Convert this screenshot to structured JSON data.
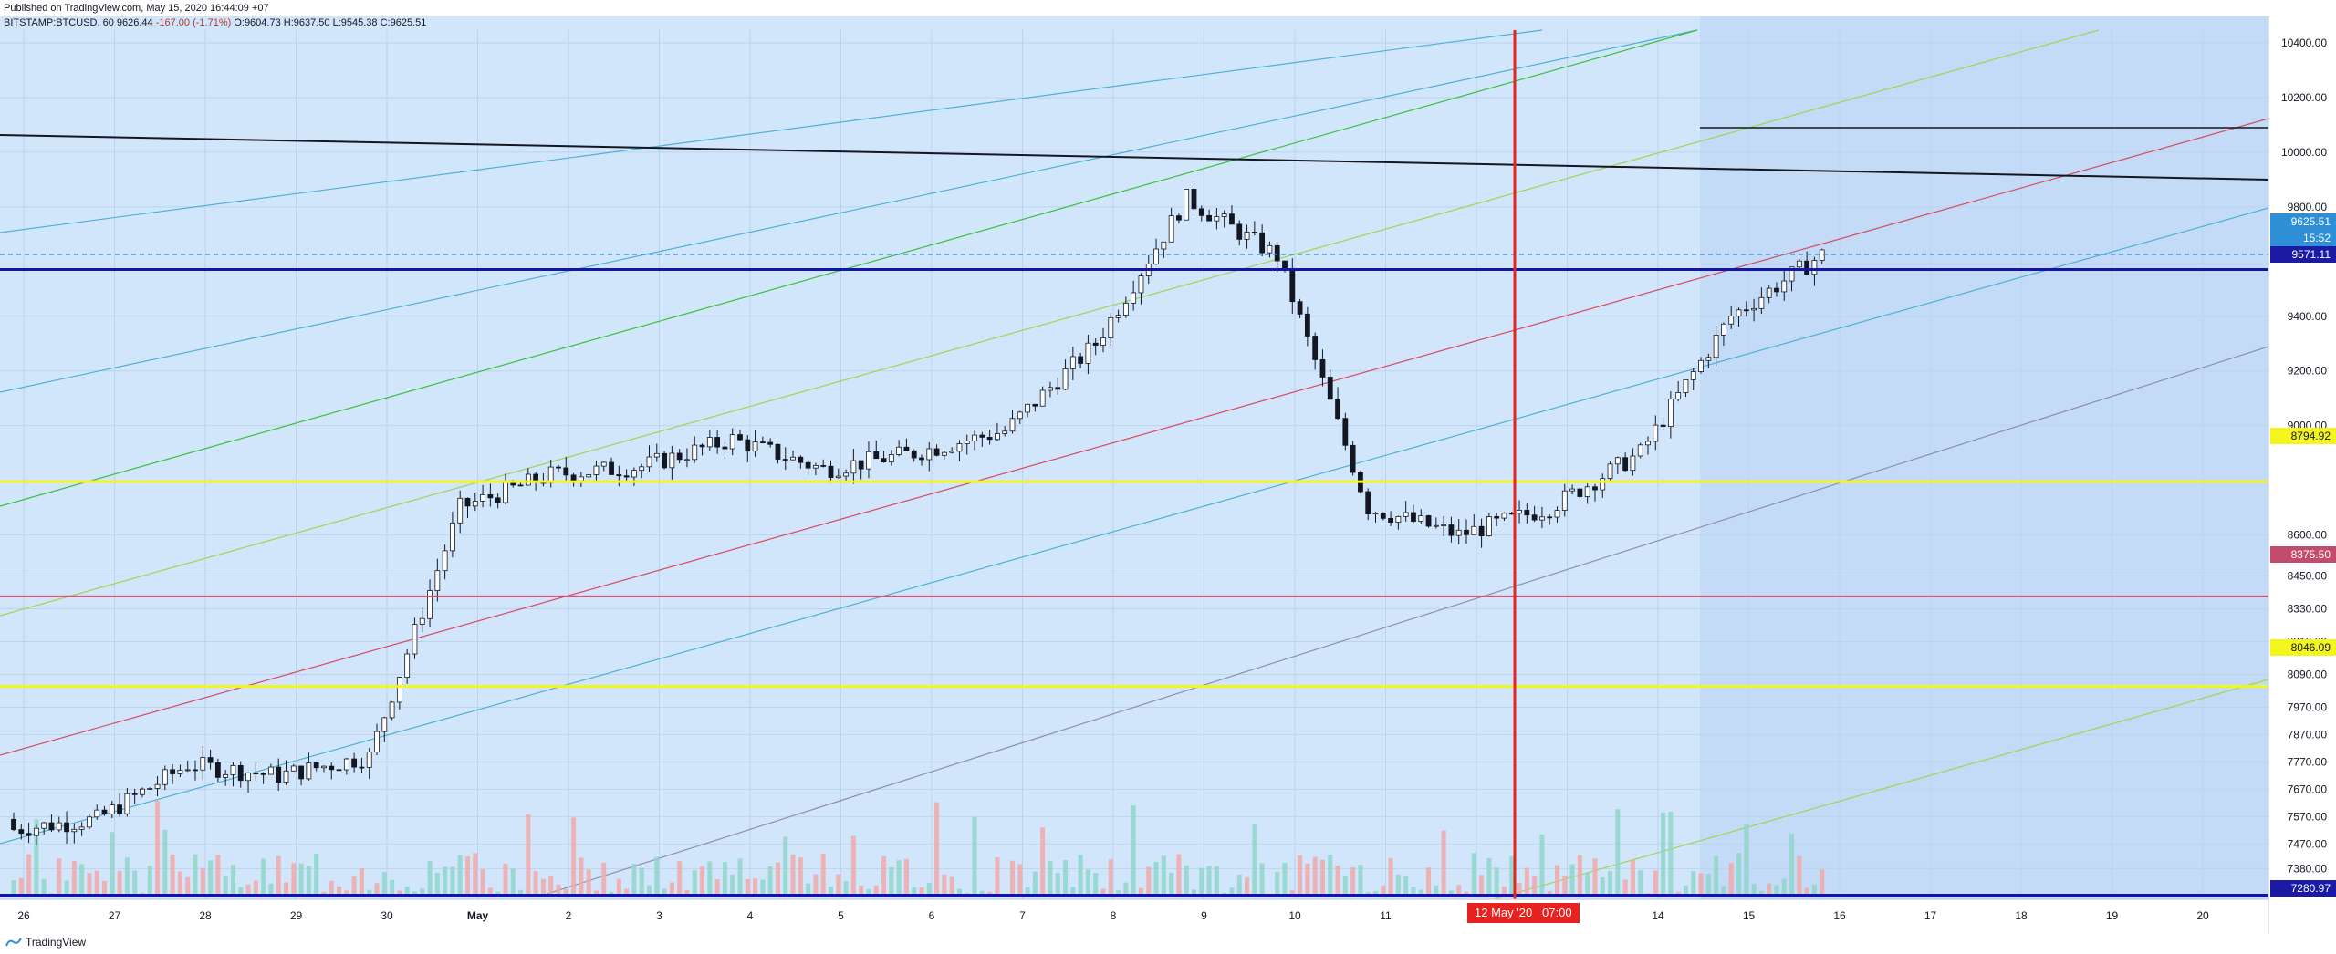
{
  "header": {
    "published": "Published on TradingView.com, May 15, 2020 16:44:09 +07",
    "symbol": "BITSTAMP:BTCUSD, 60",
    "last": "9626.44",
    "change": "-167.00 (-1.71%)",
    "o": "O:9604.73",
    "h": "H:9637.50",
    "l": "L:9545.38",
    "c": "C:9625.51"
  },
  "footer": {
    "brand": "TradingView"
  },
  "crosshair": {
    "date_label": "12 May '20",
    "time_label": "07:00"
  },
  "colors": {
    "background": "#d2e6fb",
    "shaded_region": "#c3dbf7",
    "up_candle": "#131722",
    "volume_up": "#8fd6c9",
    "volume_down": "#f2a8a8",
    "crosshair": "#e8231f",
    "yellow_level": "#f5f51e",
    "blue_level": "#1515a3",
    "red_level": "#c24b6e"
  },
  "chart_data": {
    "type": "candlestick",
    "series": [
      {
        "name": "BTCUSD",
        "x": [
          "Apr 26",
          "Apr 27",
          "Apr 28",
          "Apr 29",
          "Apr 30",
          "May 1",
          "May 2",
          "May 3",
          "May 4",
          "May 5",
          "May 6",
          "May 7",
          "May 8",
          "May 9",
          "May 10",
          "May 11",
          "May 12",
          "May 13",
          "May 14",
          "May 15"
        ],
        "close": [
          7560,
          7760,
          7720,
          7790,
          8700,
          8820,
          8850,
          8950,
          8840,
          8900,
          8980,
          9300,
          9830,
          9620,
          8700,
          8600,
          8700,
          8900,
          9400,
          9625
        ]
      }
    ],
    "x_tick_labels": [
      "26",
      "27",
      "28",
      "29",
      "30",
      "May",
      "2",
      "3",
      "4",
      "5",
      "6",
      "7",
      "8",
      "9",
      "10",
      "11",
      "12",
      "13",
      "14",
      "15",
      "16",
      "17",
      "18",
      "19",
      "20"
    ],
    "y_tick_labels": [
      "10400.00",
      "10200.00",
      "10000.00",
      "9800.00",
      "9400.00",
      "9200.00",
      "9000.00",
      "8600.00",
      "8450.00",
      "8330.00",
      "8210.00",
      "8090.00",
      "7970.00",
      "7870.00",
      "7770.00",
      "7670.00",
      "7570.00",
      "7470.00",
      "7380.00"
    ],
    "price_labels": [
      {
        "text": "9625.51",
        "bg": "#2e8fd6",
        "fg": "#ffffff"
      },
      {
        "text": "15:52",
        "bg": "#2e8fd6",
        "fg": "#ffffff"
      },
      {
        "text": "9571.11",
        "bg": "#1a1aa5",
        "fg": "#ffffff"
      },
      {
        "text": "8794.92",
        "bg": "#f5f51e",
        "fg": "#131722"
      },
      {
        "text": "8375.50",
        "bg": "#c24b6e",
        "fg": "#ffffff"
      },
      {
        "text": "8046.09",
        "bg": "#f5f51e",
        "fg": "#131722"
      },
      {
        "text": "7280.97",
        "bg": "#1a1aa5",
        "fg": "#ffffff"
      }
    ],
    "horizontal_levels": [
      9625.51,
      9571.11,
      8794.92,
      8375.5,
      8046.09,
      7280.97
    ],
    "grid": true
  }
}
